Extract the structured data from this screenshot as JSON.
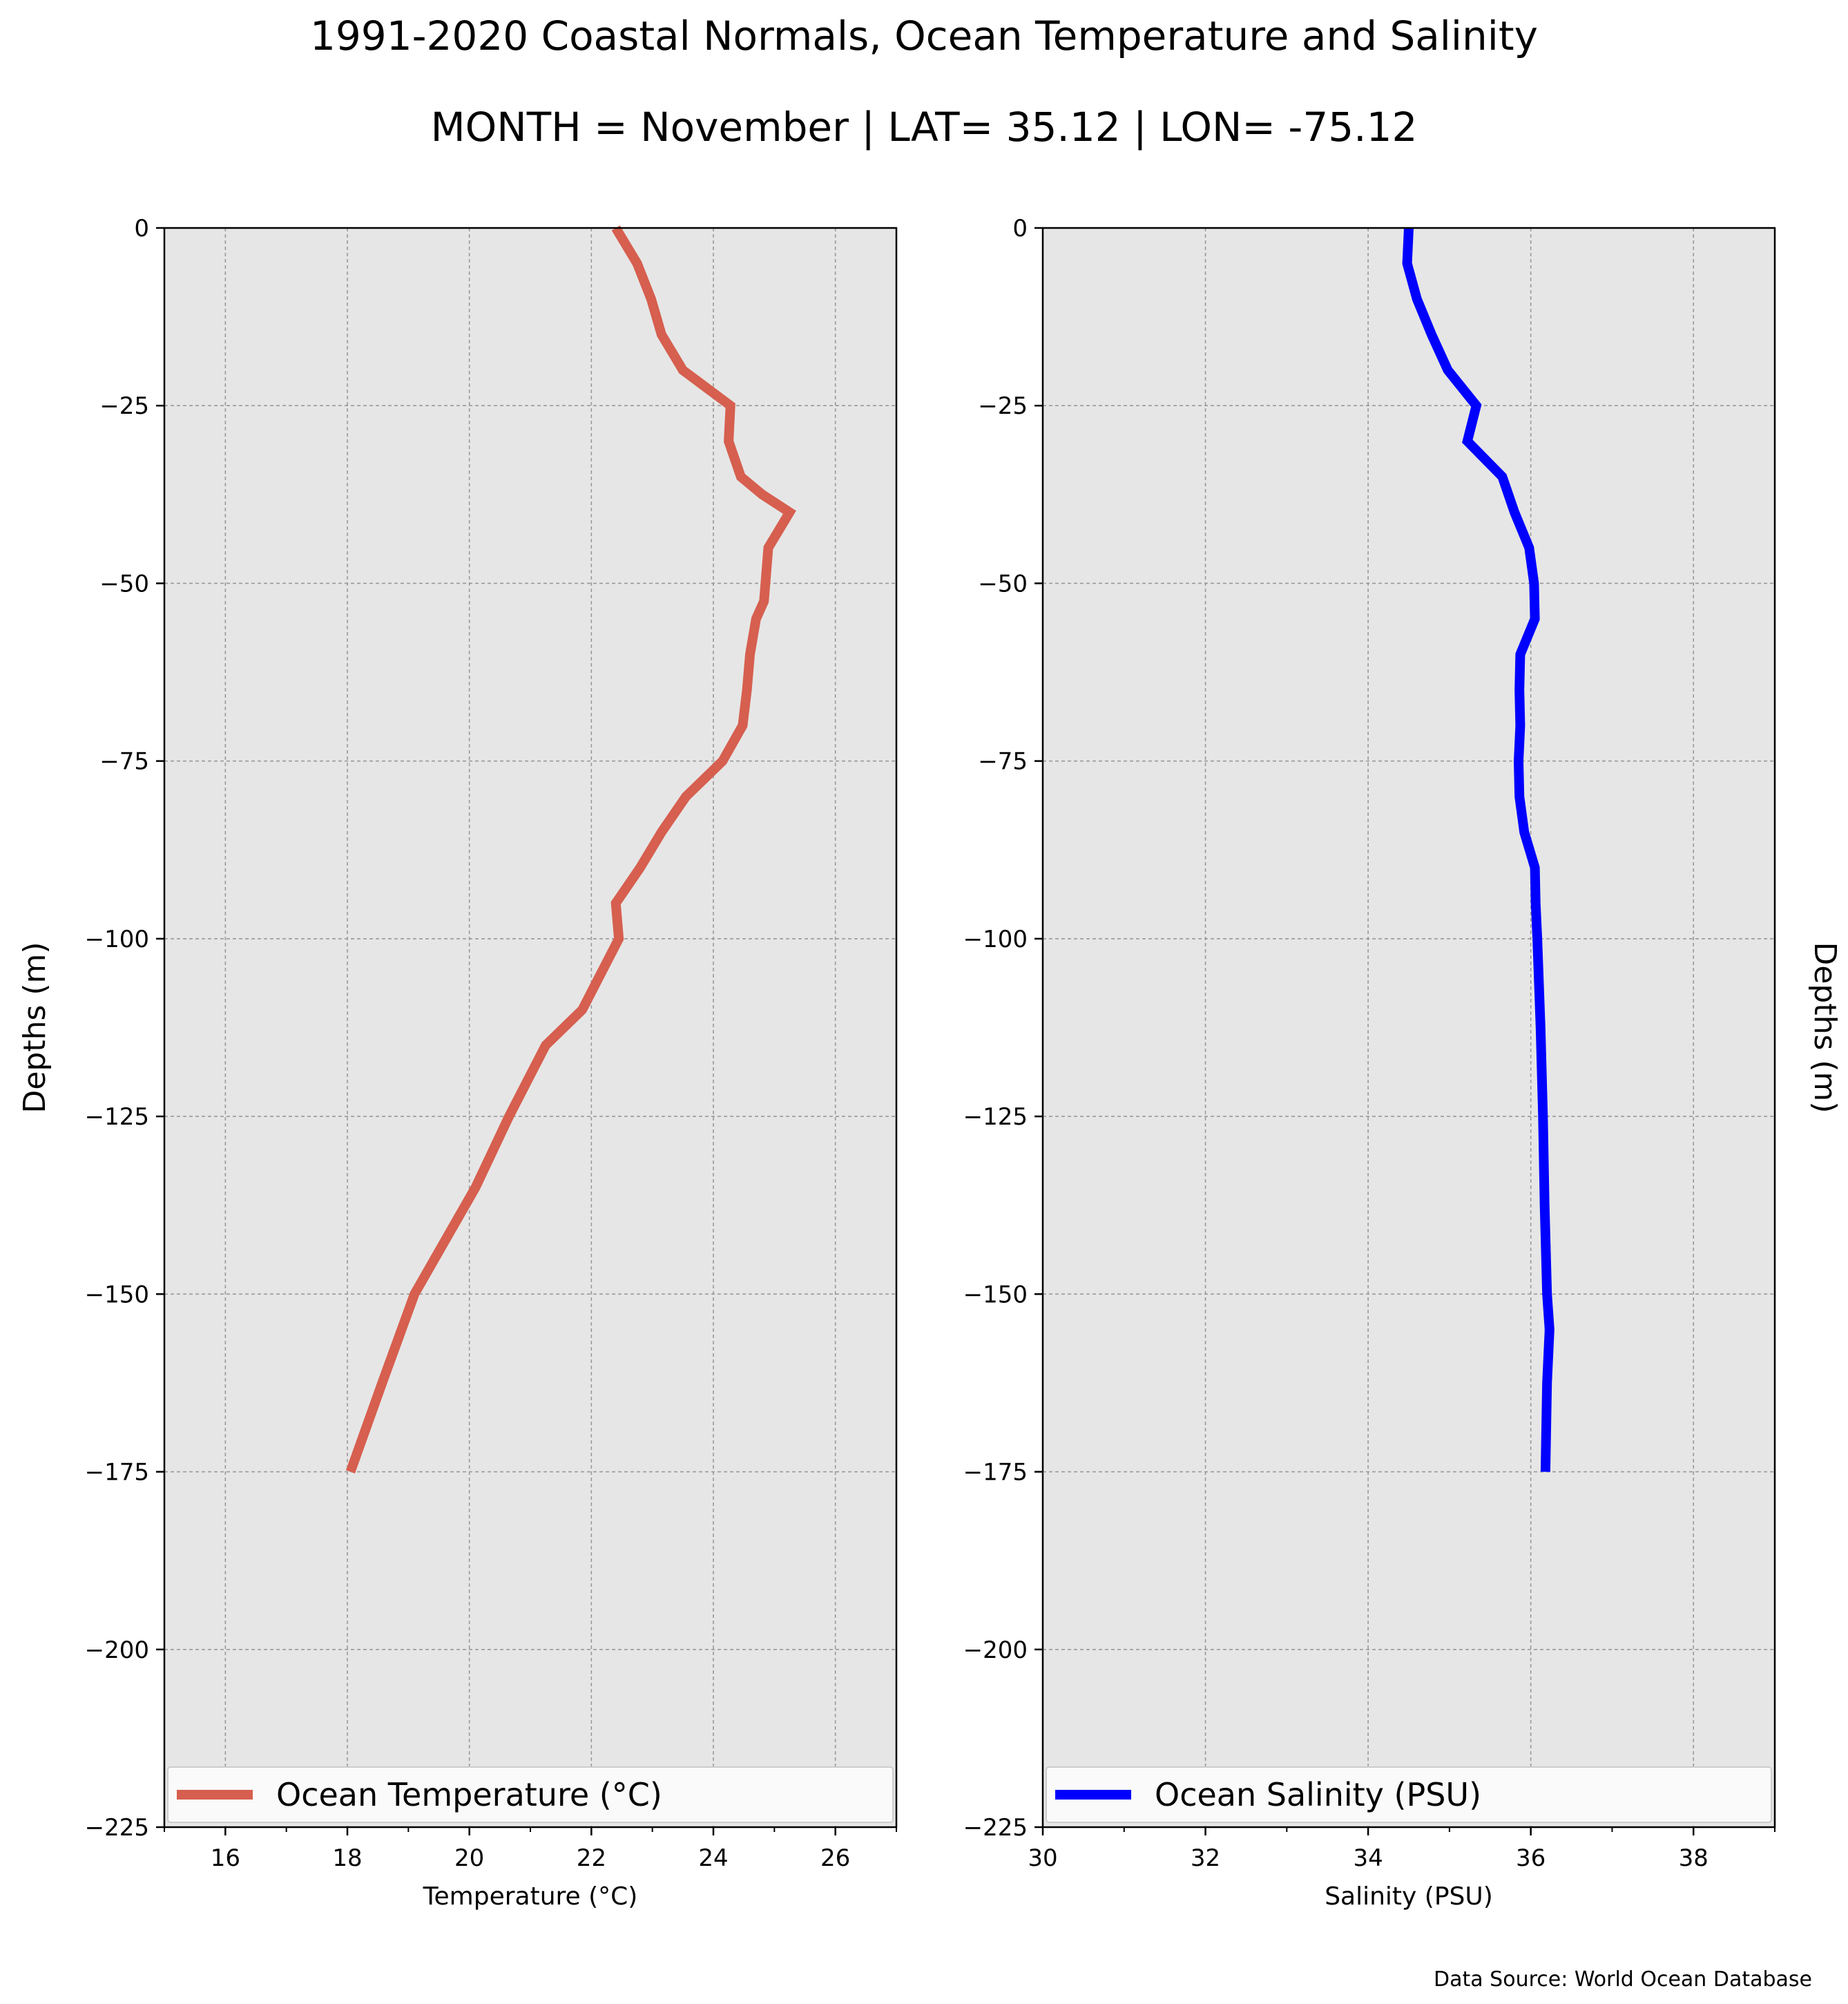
{
  "title": "1991-2020 Coastal Normals, Ocean Temperature and Salinity",
  "subtitle": "MONTH = November | LAT= 35.12 | LON= -75.12",
  "source": "Data Source: World Ocean Database",
  "colors": {
    "temperature": "#d65f4f",
    "salinity": "#0000ff",
    "panel_bg": "#e6e6e6",
    "grid": "#999999"
  },
  "chart_data": [
    {
      "type": "line",
      "xlabel": "Temperature ($^\\circ$C)",
      "xlabel_display": "Temperature (°C)",
      "ylabel": "Depths (m)",
      "ylabel_side": "left",
      "xlim": [
        15,
        27
      ],
      "ylim": [
        -225,
        0
      ],
      "xticks": [
        16,
        18,
        20,
        22,
        24,
        26
      ],
      "minor_xticks": [
        15,
        17,
        19,
        21,
        23,
        25,
        27
      ],
      "yticks": [
        0,
        -25,
        -50,
        -75,
        -100,
        -125,
        -150,
        -175,
        -200,
        -225
      ],
      "ytick_labels": [
        "0",
        "−25",
        "−50",
        "−75",
        "−100",
        "−125",
        "−150",
        "−175",
        "−200",
        "−225"
      ],
      "grid": true,
      "legend_position": "bottom",
      "series": [
        {
          "name": "Ocean Temperature (°C)",
          "color": "#d65f4f",
          "x": [
            22.4,
            22.75,
            22.98,
            23.15,
            23.5,
            24.28,
            24.25,
            24.45,
            24.8,
            25.25,
            24.9,
            24.83,
            24.7,
            24.6,
            24.55,
            24.48,
            24.15,
            23.55,
            23.15,
            22.8,
            22.4,
            22.45,
            21.85,
            21.25,
            20.65,
            20.1,
            19.6,
            19.1,
            18.57,
            18.05
          ],
          "y": [
            0,
            -5,
            -10,
            -15,
            -20,
            -25,
            -30,
            -35,
            -37.5,
            -40,
            -45,
            -52.5,
            -55,
            -60,
            -65,
            -70,
            -75,
            -80,
            -85,
            -90,
            -95,
            -100,
            -110,
            -115,
            -125,
            -135,
            -142.5,
            -150,
            -162.5,
            -175
          ]
        }
      ]
    },
    {
      "type": "line",
      "xlabel": "Salinity (PSU)",
      "ylabel": "Depths (m)",
      "ylabel_side": "right",
      "xlim": [
        30,
        39
      ],
      "ylim": [
        -225,
        0
      ],
      "xticks": [
        30,
        32,
        34,
        36,
        38
      ],
      "minor_xticks": [
        31,
        33,
        35,
        37,
        39
      ],
      "yticks": [
        0,
        -25,
        -50,
        -75,
        -100,
        -125,
        -150,
        -175,
        -200,
        -225
      ],
      "ytick_labels": [
        "0",
        "−25",
        "−50",
        "−75",
        "−100",
        "−125",
        "−150",
        "−175",
        "−200",
        "−225"
      ],
      "grid": true,
      "legend_position": "bottom",
      "series": [
        {
          "name": "Ocean Salinity (PSU)",
          "color": "#0000ff",
          "x": [
            34.5,
            34.48,
            34.6,
            34.78,
            34.98,
            35.33,
            35.22,
            35.65,
            35.8,
            35.98,
            36.04,
            36.05,
            35.87,
            35.86,
            35.87,
            35.85,
            35.86,
            35.92,
            36.05,
            36.06,
            36.08,
            36.12,
            36.15,
            36.17,
            36.2,
            36.23,
            36.2,
            36.18
          ],
          "y": [
            0,
            -5,
            -10,
            -15,
            -20,
            -25,
            -30,
            -35,
            -40,
            -45,
            -50,
            -55,
            -60,
            -65,
            -70,
            -75,
            -80,
            -85,
            -90,
            -95,
            -100,
            -112.5,
            -125,
            -137.5,
            -150,
            -155,
            -162.5,
            -175
          ]
        }
      ]
    }
  ]
}
